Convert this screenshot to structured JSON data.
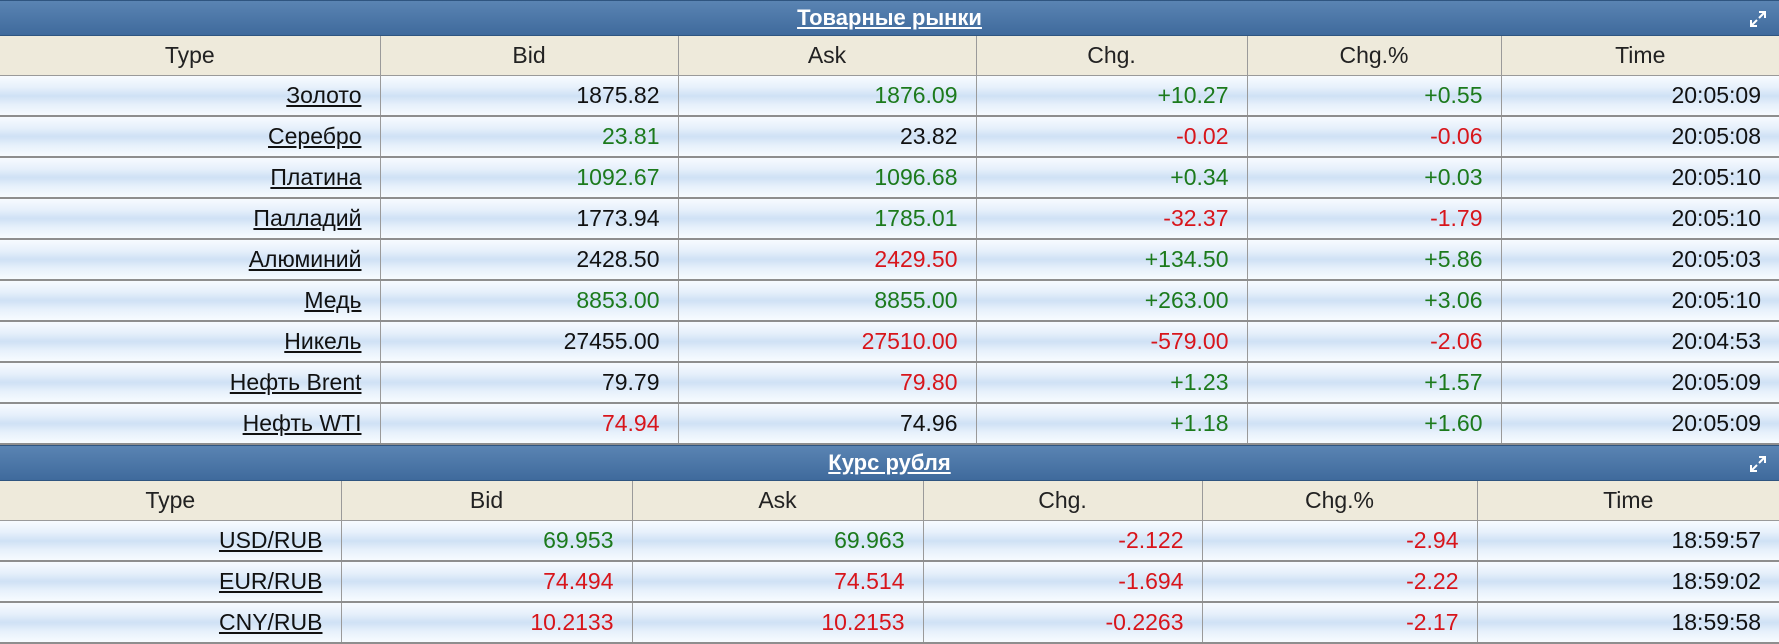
{
  "commodities": {
    "title": "Товарные рынки",
    "columns": [
      "Type",
      "Bid",
      "Ask",
      "Chg.",
      "Chg.%",
      "Time"
    ],
    "rows": [
      {
        "name": "Золото",
        "bid": "1875.82",
        "ask": "1876.09",
        "chg": "+10.27",
        "chg_pct": "+0.55",
        "time": "20:05:09",
        "bid_dir": "neutral",
        "ask_dir": "up",
        "chg_dir": "up"
      },
      {
        "name": "Серебро",
        "bid": "23.81",
        "ask": "23.82",
        "chg": "-0.02",
        "chg_pct": "-0.06",
        "time": "20:05:08",
        "bid_dir": "up",
        "ask_dir": "neutral",
        "chg_dir": "down"
      },
      {
        "name": "Платина",
        "bid": "1092.67",
        "ask": "1096.68",
        "chg": "+0.34",
        "chg_pct": "+0.03",
        "time": "20:05:10",
        "bid_dir": "up",
        "ask_dir": "up",
        "chg_dir": "up"
      },
      {
        "name": "Палладий",
        "bid": "1773.94",
        "ask": "1785.01",
        "chg": "-32.37",
        "chg_pct": "-1.79",
        "time": "20:05:10",
        "bid_dir": "neutral",
        "ask_dir": "up",
        "chg_dir": "down"
      },
      {
        "name": "Алюминий",
        "bid": "2428.50",
        "ask": "2429.50",
        "chg": "+134.50",
        "chg_pct": "+5.86",
        "time": "20:05:03",
        "bid_dir": "neutral",
        "ask_dir": "down",
        "chg_dir": "up"
      },
      {
        "name": "Медь",
        "bid": "8853.00",
        "ask": "8855.00",
        "chg": "+263.00",
        "chg_pct": "+3.06",
        "time": "20:05:10",
        "bid_dir": "up",
        "ask_dir": "up",
        "chg_dir": "up"
      },
      {
        "name": "Никель",
        "bid": "27455.00",
        "ask": "27510.00",
        "chg": "-579.00",
        "chg_pct": "-2.06",
        "time": "20:04:53",
        "bid_dir": "neutral",
        "ask_dir": "down",
        "chg_dir": "down"
      },
      {
        "name": "Нефть Brent",
        "bid": "79.79",
        "ask": "79.80",
        "chg": "+1.23",
        "chg_pct": "+1.57",
        "time": "20:05:09",
        "bid_dir": "neutral",
        "ask_dir": "down",
        "chg_dir": "up"
      },
      {
        "name": "Нефть WTI",
        "bid": "74.94",
        "ask": "74.96",
        "chg": "+1.18",
        "chg_pct": "+1.60",
        "time": "20:05:09",
        "bid_dir": "down",
        "ask_dir": "neutral",
        "chg_dir": "up"
      }
    ]
  },
  "ruble": {
    "title": "Курс рубля",
    "columns": [
      "Type",
      "Bid",
      "Ask",
      "Chg.",
      "Chg.%",
      "Time"
    ],
    "rows": [
      {
        "name": "USD/RUB",
        "bid": "69.953",
        "ask": "69.963",
        "chg": "-2.122",
        "chg_pct": "-2.94",
        "time": "18:59:57",
        "bid_dir": "up",
        "ask_dir": "up",
        "chg_dir": "down"
      },
      {
        "name": "EUR/RUB",
        "bid": "74.494",
        "ask": "74.514",
        "chg": "-1.694",
        "chg_pct": "-2.22",
        "time": "18:59:02",
        "bid_dir": "down",
        "ask_dir": "down",
        "chg_dir": "down"
      },
      {
        "name": "CNY/RUB",
        "bid": "10.2133",
        "ask": "10.2153",
        "chg": "-0.2263",
        "chg_pct": "-2.17",
        "time": "18:59:58",
        "bid_dir": "down",
        "ask_dir": "down",
        "chg_dir": "down"
      }
    ]
  },
  "colors": {
    "up": "#1c7a1c",
    "down": "#d8151b",
    "neutral": "#111111",
    "header_bg": "#4a74a6",
    "column_header_bg": "#eeeadb"
  },
  "icons": {
    "expand": "expand-icon"
  }
}
